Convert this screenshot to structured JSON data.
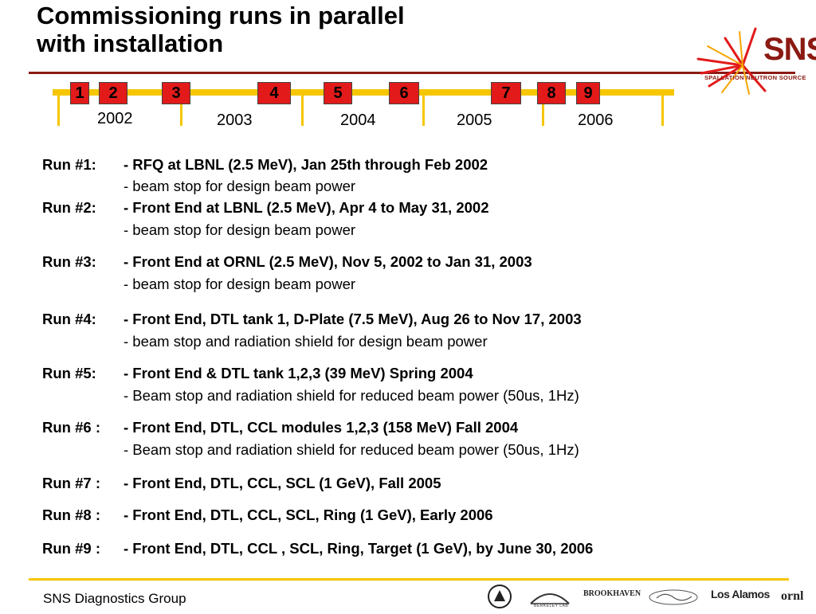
{
  "title": {
    "line1": "Commissioning runs in parallel",
    "line2": "with installation"
  },
  "logo": {
    "name": "SNS",
    "subtitle": "SPALLATION NEUTRON SOURCE",
    "accent_color": "#8b1a12"
  },
  "timeline": {
    "bar_color": "#f6c600",
    "marker_color": "#e21a1a",
    "years": [
      "2002",
      "2003",
      "2004",
      "2005",
      "2006"
    ],
    "run_markers": [
      "1",
      "2",
      "3",
      "4",
      "5",
      "6",
      "7",
      "8",
      "9"
    ]
  },
  "runs": [
    {
      "label": "Run #1:",
      "desc": "- RFQ at LBNL (2.5 MeV), Jan 25th through Feb 2002",
      "sub": "- beam stop for design beam power"
    },
    {
      "label": "Run #2:",
      "desc": "- Front End at LBNL (2.5 MeV), Apr 4 to May 31, 2002",
      "sub": "- beam stop for design beam power"
    },
    {
      "label": "Run #3:",
      "desc": "- Front End at ORNL (2.5 MeV), Nov 5, 2002 to Jan 31, 2003",
      "sub": "- beam stop for design beam power"
    },
    {
      "label": "Run #4:",
      "desc": "- Front End, DTL tank 1, D-Plate (7.5 MeV), Aug 26 to Nov 17, 2003",
      "sub": "- beam stop and radiation shield for design beam power"
    },
    {
      "label": "Run #5:",
      "desc": "- Front End & DTL tank 1,2,3 (39 MeV) Spring 2004",
      "sub": "- Beam stop and radiation shield for reduced beam power (50us, 1Hz)"
    },
    {
      "label": "Run #6 :",
      "desc": "- Front End, DTL, CCL modules 1,2,3 (158 MeV) Fall 2004",
      "sub": "- Beam stop and radiation shield for reduced beam power (50us, 1Hz)"
    },
    {
      "label": "Run #7 :",
      "desc": "- Front End, DTL, CCL, SCL (1 GeV),  Fall 2005"
    },
    {
      "label": "Run #8 :",
      "desc": "- Front End, DTL, CCL, SCL, Ring (1 GeV), Early 2006"
    },
    {
      "label": "Run #9 :",
      "desc": "- Front End, DTL, CCL , SCL, Ring, Target (1 GeV), by June 30, 2006"
    }
  ],
  "footer": {
    "group": "SNS Diagnostics Group",
    "labs": [
      "BERKELEY LAB",
      "BROOKHAVEN",
      "Los Alamos",
      "ornl"
    ],
    "line_color": "#f6c600"
  }
}
